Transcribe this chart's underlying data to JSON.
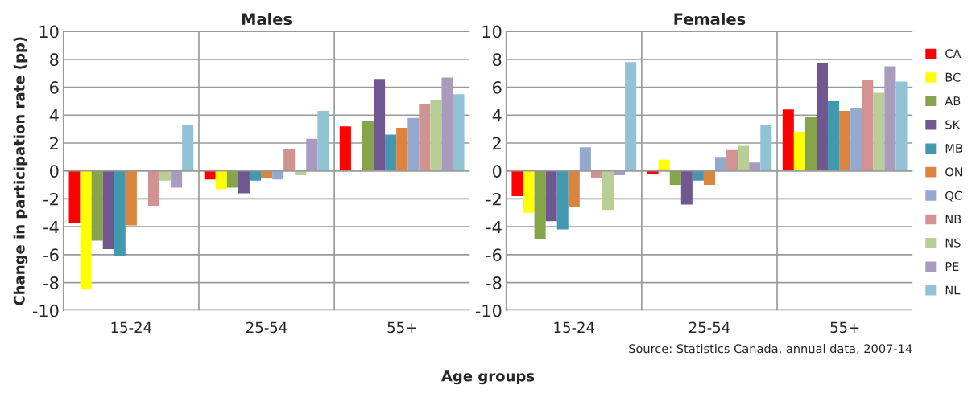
{
  "chart_data": [
    {
      "type": "bar",
      "title": "Males",
      "ylabel": "Change in participation rate (pp)",
      "xlabel": "Age groups",
      "categories": [
        "15-24",
        "25-54",
        "55+"
      ],
      "ylim": [
        -10,
        10
      ],
      "yticks": [
        -10,
        -8,
        -6,
        -4,
        -2,
        0,
        2,
        4,
        6,
        8,
        10
      ],
      "grid": true,
      "legend": "right",
      "series": [
        {
          "name": "CA",
          "color": "#ff0000",
          "values": [
            -3.7,
            -0.6,
            3.2
          ]
        },
        {
          "name": "BC",
          "color": "#ffff00",
          "values": [
            -8.5,
            -1.3,
            0.1
          ]
        },
        {
          "name": "AB",
          "color": "#86a44a",
          "values": [
            -5.0,
            -1.2,
            3.6
          ]
        },
        {
          "name": "SK",
          "color": "#70578f",
          "values": [
            -5.6,
            -1.6,
            6.6
          ]
        },
        {
          "name": "MB",
          "color": "#4198af",
          "values": [
            -6.1,
            -0.7,
            2.6
          ]
        },
        {
          "name": "ON",
          "color": "#db843d",
          "values": [
            -3.9,
            -0.5,
            3.1
          ]
        },
        {
          "name": "QC",
          "color": "#93a9cf",
          "values": [
            0.1,
            -0.6,
            3.8
          ]
        },
        {
          "name": "NB",
          "color": "#d19392",
          "values": [
            -2.5,
            1.6,
            4.8
          ]
        },
        {
          "name": "NS",
          "color": "#b9cd96",
          "values": [
            -0.7,
            -0.3,
            5.1
          ]
        },
        {
          "name": "PE",
          "color": "#a99bbd",
          "values": [
            -1.2,
            2.3,
            6.7
          ]
        },
        {
          "name": "NL",
          "color": "#92c3d5",
          "values": [
            3.3,
            4.3,
            5.5
          ]
        }
      ]
    },
    {
      "type": "bar",
      "title": "Females",
      "annotations": [
        "Source: Statistics Canada, annual data, 2007-14"
      ],
      "categories": [
        "15-24",
        "25-54",
        "55+"
      ],
      "ylim": [
        -10,
        10
      ],
      "yticks": [
        -10,
        -8,
        -6,
        -4,
        -2,
        0,
        2,
        4,
        6,
        8,
        10
      ],
      "grid": true,
      "series": [
        {
          "color": "#ff0000",
          "values": [
            -1.8,
            -0.2,
            4.4
          ]
        },
        {
          "color": "#ffff00",
          "values": [
            -3.0,
            0.8,
            2.8
          ]
        },
        {
          "color": "#86a44a",
          "values": [
            -4.9,
            -1.0,
            3.9
          ]
        },
        {
          "color": "#70578f",
          "values": [
            -3.6,
            -2.4,
            7.7
          ]
        },
        {
          "color": "#4198af",
          "values": [
            -4.2,
            -0.7,
            5.0
          ]
        },
        {
          "color": "#db843d",
          "values": [
            -2.6,
            -1.0,
            4.3
          ]
        },
        {
          "color": "#93a9cf",
          "values": [
            1.7,
            1.0,
            4.5
          ]
        },
        {
          "color": "#d19392",
          "values": [
            -0.5,
            1.5,
            6.5
          ]
        },
        {
          "color": "#b9cd96",
          "values": [
            -2.8,
            1.8,
            5.6
          ]
        },
        {
          "color": "#a99bbd",
          "values": [
            -0.3,
            0.6,
            7.5
          ]
        },
        {
          "color": "#92c3d5",
          "values": [
            7.8,
            3.3,
            6.4
          ]
        }
      ]
    }
  ]
}
